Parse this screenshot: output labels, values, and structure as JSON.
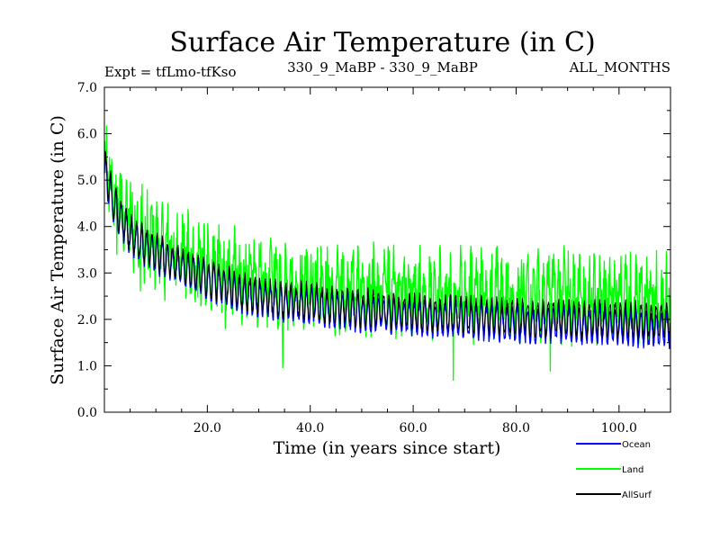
{
  "chart_data": {
    "type": "line",
    "title": "Surface Air Temperature (in C)",
    "subtitle_left": "Expt = tfLmo-tfKso",
    "subtitle_center": "330_9_MaBP - 330_9_MaBP",
    "subtitle_right": "ALL_MONTHS",
    "xlabel": "Time (in years since start)",
    "ylabel": "Surface Air Temperature (in C)",
    "xlim": [
      0,
      110
    ],
    "ylim": [
      0,
      7
    ],
    "xticks": [
      20,
      40,
      60,
      80,
      100
    ],
    "xtick_labels": [
      "20.0",
      "40.0",
      "60.0",
      "80.0",
      "100.0"
    ],
    "yticks": [
      0,
      1,
      2,
      3,
      4,
      5,
      6,
      7
    ],
    "ytick_labels": [
      "0.0",
      "1.0",
      "2.0",
      "3.0",
      "4.0",
      "5.0",
      "6.0",
      "7.0"
    ],
    "x": [
      0,
      2,
      5,
      10,
      15,
      20,
      25,
      30,
      35,
      40,
      45,
      50,
      55,
      60,
      65,
      70,
      75,
      80,
      85,
      90,
      95,
      100,
      105,
      110
    ],
    "series": [
      {
        "name": "Ocean",
        "color": "#0000ff",
        "values": [
          5.2,
          4.4,
          3.8,
          3.4,
          3.1,
          2.85,
          2.6,
          2.45,
          2.35,
          2.3,
          2.2,
          2.15,
          2.1,
          2.05,
          2.0,
          2.0,
          1.95,
          1.9,
          1.9,
          1.9,
          1.85,
          1.85,
          1.8,
          1.8
        ],
        "amplitude": 0.35
      },
      {
        "name": "Land",
        "color": "#00ff00",
        "values": [
          5.5,
          4.6,
          4.1,
          3.7,
          3.4,
          3.2,
          3.0,
          2.85,
          2.8,
          2.75,
          2.7,
          2.65,
          2.6,
          2.6,
          2.55,
          2.55,
          2.55,
          2.5,
          2.5,
          2.5,
          2.5,
          2.45,
          2.45,
          2.45
        ],
        "amplitude": 0.75
      },
      {
        "name": "AllSurf",
        "color": "#000000",
        "values": [
          5.3,
          4.45,
          3.85,
          3.45,
          3.15,
          2.9,
          2.68,
          2.52,
          2.42,
          2.38,
          2.3,
          2.25,
          2.2,
          2.15,
          2.12,
          2.1,
          2.08,
          2.05,
          2.03,
          2.02,
          2.0,
          2.0,
          1.98,
          1.98
        ],
        "amplitude": 0.35
      }
    ]
  }
}
